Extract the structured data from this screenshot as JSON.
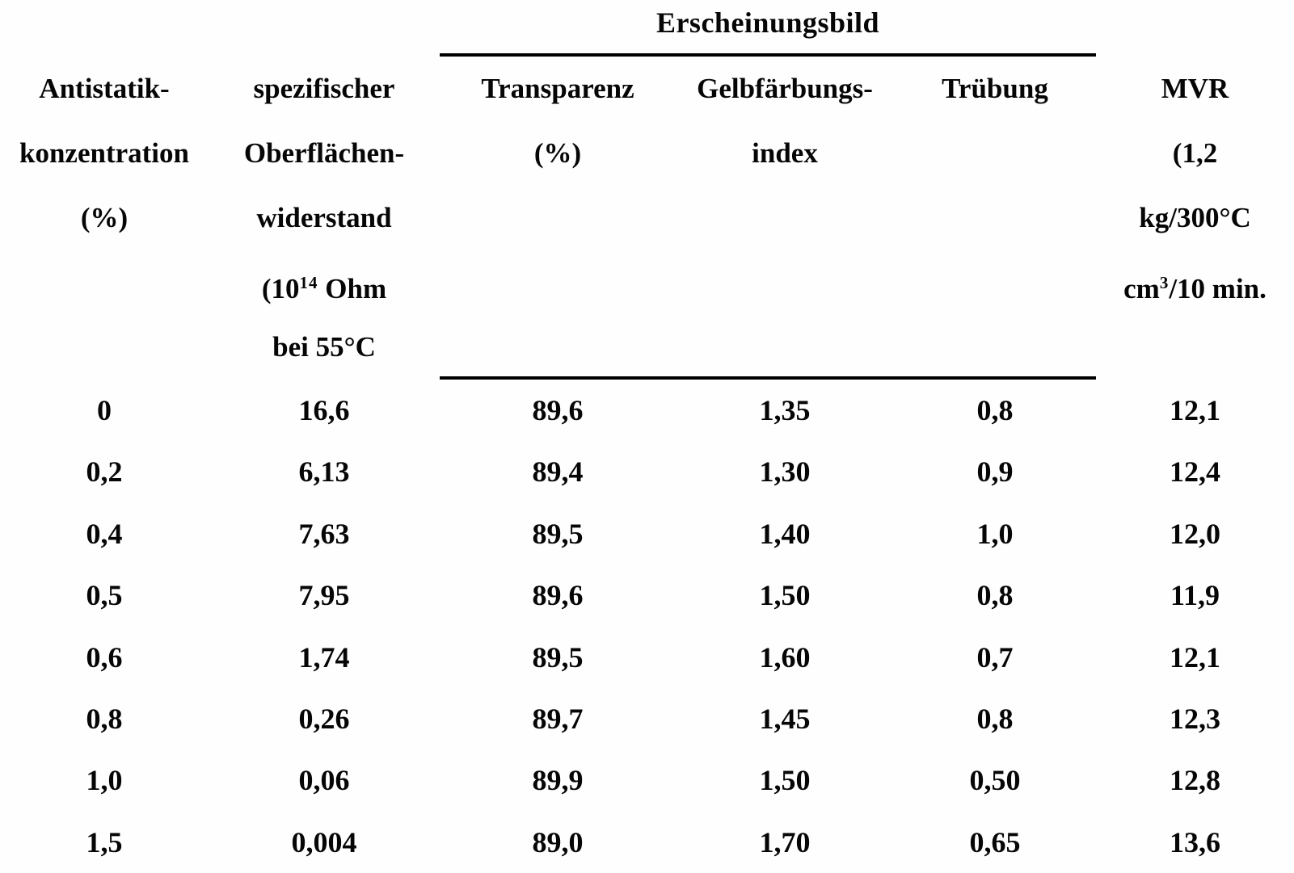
{
  "table": {
    "group_header": "Erscheinungsbild",
    "col_antistatik": {
      "l1": "Antistatik-",
      "l2": "konzentration",
      "l3": "(%)"
    },
    "col_widerstand": {
      "l1": "spezifischer",
      "l2": "Oberflächen-",
      "l3": "widerstand",
      "l4_pre": "(10",
      "l4_sup": "14",
      "l4_post": " Ohm",
      "l5": "bei 55°C"
    },
    "col_transparenz": {
      "l1": "Transparenz",
      "l2": "(%)"
    },
    "col_gelbfaerbung": {
      "l1": "Gelbfärbungs-",
      "l2": "index"
    },
    "col_truebung": {
      "l1": "Trübung"
    },
    "col_mvr": {
      "l1": "MVR",
      "l2": "(1,2",
      "l3": "kg/300°C",
      "l4_pre": "cm",
      "l4_sup": "3",
      "l4_post": "/10 min."
    },
    "rows": [
      [
        "0",
        "16,6",
        "89,6",
        "1,35",
        "0,8",
        "12,1"
      ],
      [
        "0,2",
        "6,13",
        "89,4",
        "1,30",
        "0,9",
        "12,4"
      ],
      [
        "0,4",
        "7,63",
        "89,5",
        "1,40",
        "1,0",
        "12,0"
      ],
      [
        "0,5",
        "7,95",
        "89,6",
        "1,50",
        "0,8",
        "11,9"
      ],
      [
        "0,6",
        "1,74",
        "89,5",
        "1,60",
        "0,7",
        "12,1"
      ],
      [
        "0,8",
        "0,26",
        "89,7",
        "1,45",
        "0,8",
        "12,3"
      ],
      [
        "1,0",
        "0,06",
        "89,9",
        "1,50",
        "0,50",
        "12,8"
      ],
      [
        "1,5",
        "0,004",
        "89,0",
        "1,70",
        "0,65",
        "13,6"
      ]
    ]
  }
}
